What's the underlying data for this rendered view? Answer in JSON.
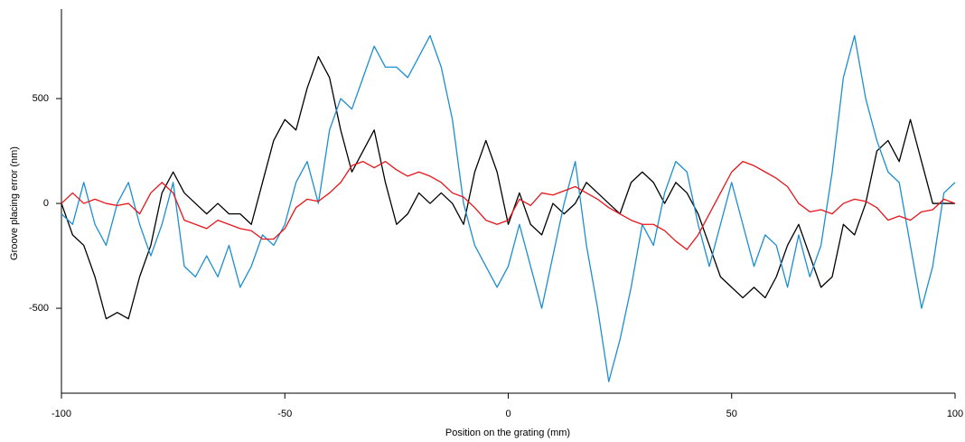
{
  "chart_data": {
    "type": "line",
    "x_label": "Position on the grating (mm)",
    "y_label": "Groove placing error (nm)",
    "xlim": [
      -100,
      100
    ],
    "ylim": [
      -905,
      927
    ],
    "xticks": [
      -100,
      -50,
      0,
      50,
      100
    ],
    "yticks": [
      -500,
      0,
      500
    ],
    "grid": false,
    "x": [
      -100,
      -97.5,
      -95,
      -92.5,
      -90,
      -87.5,
      -85,
      -82.5,
      -80,
      -77.5,
      -75,
      -72.5,
      -70,
      -67.5,
      -65,
      -62.5,
      -60,
      -57.5,
      -55,
      -52.5,
      -50,
      -47.5,
      -45,
      -42.5,
      -40,
      -37.5,
      -35,
      -32.5,
      -30,
      -27.5,
      -25,
      -22.5,
      -20,
      -17.5,
      -15,
      -12.5,
      -10,
      -7.5,
      -5,
      -2.5,
      0,
      2.5,
      5,
      7.5,
      10,
      12.5,
      15,
      17.5,
      20,
      22.5,
      25,
      27.5,
      30,
      32.5,
      35,
      37.5,
      40,
      42.5,
      45,
      47.5,
      50,
      52.5,
      55,
      57.5,
      60,
      62.5,
      65,
      67.5,
      70,
      72.5,
      75,
      77.5,
      80,
      82.5,
      85,
      87.5,
      90,
      92.5,
      95,
      97.5,
      100
    ],
    "series": [
      {
        "color": "#000000",
        "values": [
          0,
          -150,
          -200,
          -350,
          -550,
          -520,
          -550,
          -350,
          -200,
          50,
          150,
          50,
          0,
          -50,
          0,
          -50,
          -50,
          -100,
          100,
          300,
          400,
          350,
          550,
          700,
          600,
          350,
          150,
          250,
          350,
          100,
          -100,
          -50,
          50,
          0,
          50,
          0,
          -100,
          150,
          300,
          150,
          -100,
          50,
          -100,
          -150,
          0,
          -50,
          0,
          100,
          50,
          0,
          -50,
          100,
          150,
          100,
          0,
          100,
          50,
          -50,
          -200,
          -350,
          -400,
          -450,
          -400,
          -450,
          -350,
          -200,
          -100,
          -250,
          -400,
          -350,
          -100,
          -150,
          0,
          250,
          300,
          200,
          400,
          200,
          0,
          0,
          0
        ]
      },
      {
        "color": "#1b8fd0",
        "values": [
          -50,
          -100,
          100,
          -100,
          -200,
          0,
          100,
          -100,
          -250,
          -100,
          100,
          -300,
          -350,
          -250,
          -350,
          -200,
          -400,
          -300,
          -150,
          -200,
          -100,
          100,
          200,
          0,
          350,
          500,
          450,
          600,
          750,
          650,
          650,
          600,
          700,
          800,
          650,
          400,
          0,
          -200,
          -300,
          -400,
          -300,
          -100,
          -300,
          -500,
          -250,
          0,
          200,
          -200,
          -500,
          -850,
          -650,
          -400,
          -100,
          -200,
          50,
          200,
          150,
          -100,
          -300,
          -100,
          100,
          -100,
          -300,
          -150,
          -200,
          -400,
          -150,
          -350,
          -200,
          150,
          600,
          800,
          500,
          300,
          150,
          100,
          -200,
          -500,
          -300,
          50,
          100
        ]
      },
      {
        "color": "#e8141a",
        "values": [
          0,
          50,
          0,
          20,
          0,
          -10,
          0,
          -50,
          50,
          100,
          50,
          -80,
          -100,
          -120,
          -80,
          -100,
          -120,
          -130,
          -170,
          -170,
          -120,
          -20,
          20,
          10,
          50,
          100,
          180,
          200,
          170,
          200,
          160,
          130,
          150,
          130,
          100,
          50,
          30,
          -20,
          -80,
          -100,
          -80,
          20,
          -10,
          50,
          40,
          60,
          80,
          50,
          20,
          -20,
          -50,
          -80,
          -100,
          -100,
          -130,
          -180,
          -220,
          -150,
          -50,
          50,
          150,
          200,
          180,
          150,
          120,
          80,
          0,
          -40,
          -30,
          -50,
          0,
          20,
          10,
          -20,
          -80,
          -60,
          -80,
          -40,
          -30,
          20,
          0
        ]
      }
    ]
  }
}
